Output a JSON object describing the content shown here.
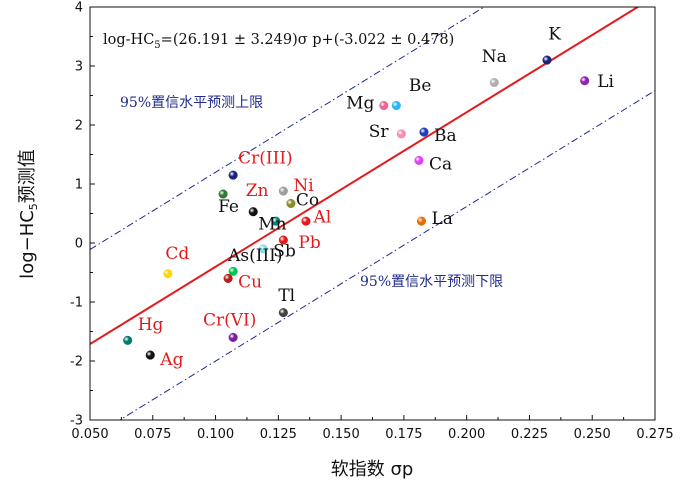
{
  "chart_data": {
    "type": "scatter",
    "xlabel": "软指数 σp",
    "ylabel_main": "log−HC",
    "ylabel_sub": "5",
    "ylabel_tail": "预测值",
    "xlim": [
      0.05,
      0.275
    ],
    "ylim": [
      -3,
      4
    ],
    "x_ticks": [
      "0.050",
      "0.075",
      "0.100",
      "0.125",
      "0.150",
      "0.175",
      "0.200",
      "0.225",
      "0.250",
      "0.275"
    ],
    "y_ticks": [
      "-3",
      "-2",
      "-1",
      "0",
      "1",
      "2",
      "3",
      "4"
    ],
    "equation": {
      "prefix": "log-HC",
      "sub": "5",
      "body": "=(26.191 ±  3.249)σ p+(-3.022 ± 0.478)"
    },
    "fit_line": {
      "slope": 26.191,
      "intercept": -3.022,
      "color": "#e41a1c"
    },
    "upper_band": {
      "slope": 26.191,
      "intercept": -1.42,
      "label": "95%置信水平预测上限",
      "color": "#1f2a8a"
    },
    "lower_band": {
      "slope": 26.191,
      "intercept": -4.62,
      "label": "95%置信水平预测下限",
      "color": "#1f2a8a"
    },
    "points": [
      {
        "label": "K",
        "x": 0.232,
        "y": 3.1,
        "color": "#1a237e",
        "label_color": "#111111",
        "lx": 0.0005,
        "ly": 0.45
      },
      {
        "label": "Na",
        "x": 0.211,
        "y": 2.72,
        "color": "#b0b0b0",
        "label_color": "#111111",
        "lx": -0.005,
        "ly": 0.45
      },
      {
        "label": "Li",
        "x": 0.247,
        "y": 2.75,
        "color": "#8e24aa",
        "label_color": "#111111",
        "lx": 0.005,
        "ly": 0.0
      },
      {
        "label": "Mg",
        "x": 0.167,
        "y": 2.33,
        "color": "#f06292",
        "label_color": "#111111",
        "lx": -0.015,
        "ly": 0.05
      },
      {
        "label": "Be",
        "x": 0.172,
        "y": 2.33,
        "color": "#29b6f6",
        "label_color": "#111111",
        "lx": 0.005,
        "ly": 0.35
      },
      {
        "label": "Sr",
        "x": 0.174,
        "y": 1.85,
        "color": "#f48fb1",
        "label_color": "#111111",
        "lx": -0.013,
        "ly": 0.05
      },
      {
        "label": "Ba",
        "x": 0.183,
        "y": 1.88,
        "color": "#1e3fbf",
        "label_color": "#111111",
        "lx": 0.004,
        "ly": -0.05
      },
      {
        "label": "Ca",
        "x": 0.181,
        "y": 1.4,
        "color": "#e040fb",
        "label_color": "#111111",
        "lx": 0.004,
        "ly": -0.05
      },
      {
        "label": "Cr(III)",
        "x": 0.107,
        "y": 1.15,
        "color": "#1a237e",
        "label_color": "#e41a1c",
        "lx": 0.002,
        "ly": 0.3
      },
      {
        "label": "Ni",
        "x": 0.127,
        "y": 0.88,
        "color": "#9e9e9e",
        "label_color": "#e41a1c",
        "lx": 0.004,
        "ly": 0.1
      },
      {
        "label": "Zn",
        "x": 0.103,
        "y": 0.83,
        "color": "#2e7d32",
        "label_color": "#e41a1c",
        "lx": 0.009,
        "ly": 0.07
      },
      {
        "label": "Co",
        "x": 0.13,
        "y": 0.67,
        "color": "#8a8a2e",
        "label_color": "#111111",
        "lx": 0.002,
        "ly": 0.07
      },
      {
        "label": "Fe",
        "x": 0.115,
        "y": 0.53,
        "color": "#111111",
        "label_color": "#111111",
        "lx": -0.014,
        "ly": 0.1
      },
      {
        "label": "Mn",
        "x": 0.124,
        "y": 0.37,
        "color": "#00897b",
        "label_color": "#111111",
        "lx": -0.007,
        "ly": -0.04
      },
      {
        "label": "Al",
        "x": 0.136,
        "y": 0.37,
        "color": "#e41a1c",
        "label_color": "#e41a1c",
        "lx": 0.003,
        "ly": 0.08
      },
      {
        "label": "La",
        "x": 0.182,
        "y": 0.37,
        "color": "#ef6c00",
        "label_color": "#111111",
        "lx": 0.004,
        "ly": 0.05
      },
      {
        "label": "Sb",
        "x": 0.119,
        "y": -0.1,
        "color": "#80deea",
        "label_color": "#111111",
        "lx": 0.004,
        "ly": -0.03
      },
      {
        "label": "Pb",
        "x": 0.127,
        "y": 0.05,
        "color": "#e41a1c",
        "label_color": "#e41a1c",
        "lx": 0.006,
        "ly": -0.03
      },
      {
        "label": "Cd",
        "x": 0.081,
        "y": -0.52,
        "color": "#ffd600",
        "label_color": "#e41a1c",
        "lx": -0.001,
        "ly": 0.35
      },
      {
        "label": "As(III)",
        "x": 0.107,
        "y": -0.48,
        "color": "#00c853",
        "label_color": "#111111",
        "lx": -0.002,
        "ly": 0.28
      },
      {
        "label": "Cu",
        "x": 0.105,
        "y": -0.6,
        "color": "#b71c1c",
        "label_color": "#e41a1c",
        "lx": 0.004,
        "ly": -0.05
      },
      {
        "label": "Tl",
        "x": 0.127,
        "y": -1.18,
        "color": "#424242",
        "label_color": "#111111",
        "lx": -0.002,
        "ly": 0.3
      },
      {
        "label": "Cr(VI)",
        "x": 0.107,
        "y": -1.6,
        "color": "#7b1fa2",
        "label_color": "#e41a1c",
        "lx": -0.012,
        "ly": 0.3
      },
      {
        "label": "Hg",
        "x": 0.065,
        "y": -1.65,
        "color": "#00796b",
        "label_color": "#e41a1c",
        "lx": 0.004,
        "ly": 0.28
      },
      {
        "label": "Ag",
        "x": 0.074,
        "y": -1.9,
        "color": "#111111",
        "label_color": "#e41a1c",
        "lx": 0.004,
        "ly": -0.07
      }
    ]
  }
}
